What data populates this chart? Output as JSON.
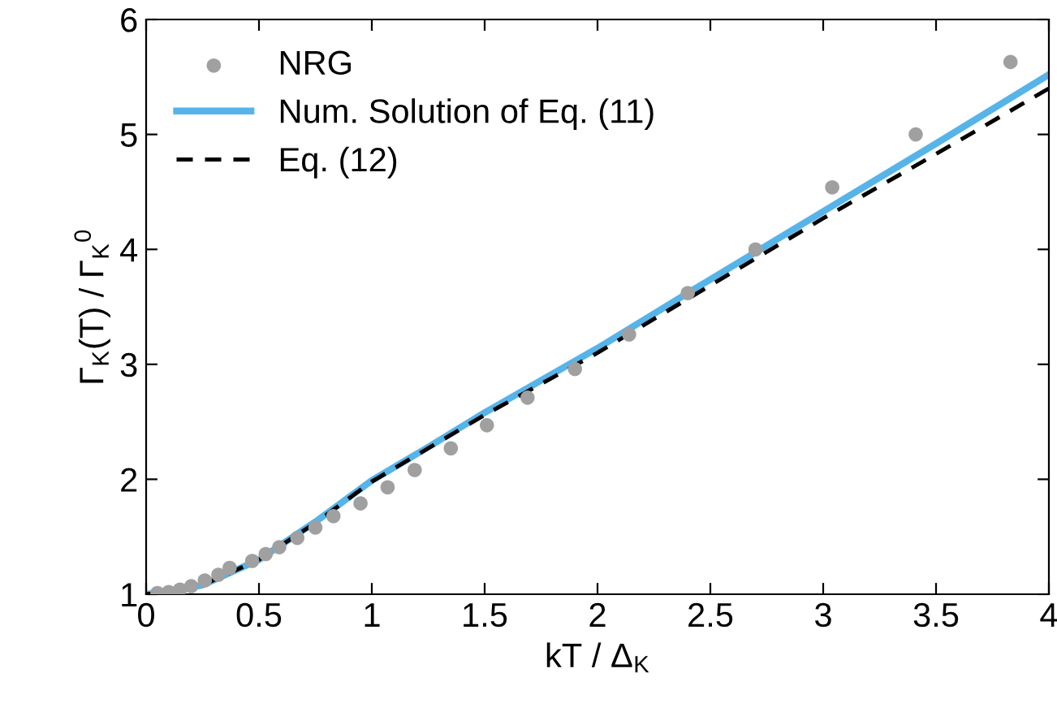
{
  "chart_data": {
    "type": "line",
    "xlabel": "kT / Δ$_{K}$",
    "ylabel": "Γ$_{K}$(T) / Γ$_{K}$$^{0}$",
    "xlim": [
      0,
      4
    ],
    "ylim": [
      1,
      6
    ],
    "xticks": [
      0,
      0.5,
      1,
      1.5,
      2,
      2.5,
      3,
      3.5,
      4
    ],
    "yticks": [
      1,
      2,
      3,
      4,
      5,
      6
    ],
    "grid": false,
    "legend": "top left",
    "series": [
      {
        "name": "NRG",
        "type": "scatter",
        "marker": "circle",
        "color": "#a0a0a0",
        "x": [
          0.05,
          0.1,
          0.15,
          0.2,
          0.26,
          0.32,
          0.37,
          0.47,
          0.53,
          0.59,
          0.67,
          0.75,
          0.83,
          0.95,
          1.07,
          1.19,
          1.35,
          1.51,
          1.69,
          1.9,
          2.14,
          2.4,
          2.7,
          3.04,
          3.41,
          3.83
        ],
        "values": [
          1.01,
          1.02,
          1.04,
          1.07,
          1.12,
          1.17,
          1.23,
          1.29,
          1.35,
          1.41,
          1.49,
          1.58,
          1.68,
          1.79,
          1.93,
          2.08,
          2.27,
          2.47,
          2.71,
          2.96,
          3.26,
          3.62,
          4.0,
          4.54,
          5.0,
          5.63
        ]
      },
      {
        "name": "Num. Solution of Eq. (11)",
        "type": "line",
        "line_style": "solid",
        "color": "#56b4e9",
        "x": [
          0,
          0.1,
          0.25,
          0.5,
          0.75,
          1,
          1.25,
          1.5,
          2,
          2.4,
          3,
          3.5,
          4
        ],
        "values": [
          1.0,
          1.02,
          1.08,
          1.3,
          1.63,
          1.99,
          2.28,
          2.58,
          3.14,
          3.62,
          4.33,
          4.92,
          5.52
        ]
      },
      {
        "name": "Eq. (12)",
        "type": "line",
        "line_style": "dashed",
        "color": "#000000",
        "x": [
          0,
          0.1,
          0.25,
          0.5,
          0.75,
          1,
          1.25,
          1.5,
          2,
          2.4,
          3,
          3.5,
          4
        ],
        "values": [
          1.0,
          1.02,
          1.08,
          1.3,
          1.62,
          1.98,
          2.27,
          2.56,
          3.1,
          3.57,
          4.27,
          4.83,
          5.4
        ]
      }
    ]
  }
}
